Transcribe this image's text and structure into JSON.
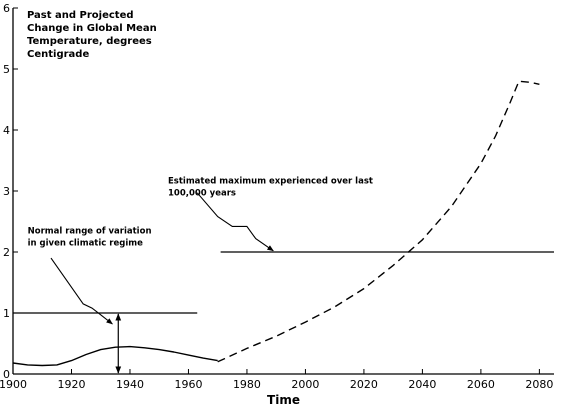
{
  "chart_data": {
    "type": "line",
    "title_lines": [
      "Past and Projected",
      "Change in Global Mean",
      "Temperature, degrees",
      "Centigrade"
    ],
    "xlabel": "Time",
    "ylabel": "",
    "xlim": [
      1900,
      2085
    ],
    "ylim": [
      0,
      6
    ],
    "x_ticks": [
      1900,
      1920,
      1940,
      1960,
      1980,
      2000,
      2020,
      2040,
      2060,
      2080
    ],
    "y_ticks": [
      0,
      1,
      2,
      3,
      4,
      5,
      6
    ],
    "grid": false,
    "series": [
      {
        "style": "solid",
        "x": [
          1900,
          1905,
          1910,
          1915,
          1920,
          1925,
          1930,
          1935,
          1940,
          1945,
          1950,
          1955,
          1960,
          1965,
          1970
        ],
        "y": [
          0.18,
          0.15,
          0.14,
          0.15,
          0.22,
          0.32,
          0.4,
          0.44,
          0.45,
          0.43,
          0.4,
          0.36,
          0.31,
          0.26,
          0.22
        ]
      },
      {
        "style": "dashed",
        "x": [
          1970,
          1980,
          1990,
          2000,
          2010,
          2020,
          2030,
          2040,
          2050,
          2060,
          2065,
          2070,
          2073,
          2077,
          2080
        ],
        "y": [
          0.2,
          0.42,
          0.62,
          0.85,
          1.1,
          1.4,
          1.78,
          2.2,
          2.75,
          3.45,
          3.9,
          4.45,
          4.8,
          4.78,
          4.75
        ]
      }
    ],
    "reference_lines": [
      {
        "y": 1.0,
        "x_start": 1900,
        "x_end": 1963
      },
      {
        "y": 2.0,
        "x_start": 1971,
        "x_end": 2085
      }
    ],
    "annotations": [
      {
        "lines": [
          "Normal range of variation",
          "in given climatic regime"
        ],
        "text_x": 1905,
        "text_y": 2.3,
        "leader": [
          [
            1913,
            1.9
          ],
          [
            1924,
            1.15
          ],
          [
            1927,
            1.08
          ],
          [
            1930,
            0.97
          ],
          [
            1934,
            0.82
          ]
        ]
      },
      {
        "lines": [
          "Estimated maximum experienced over last",
          "100,000 years"
        ],
        "text_x": 1953,
        "text_y": 3.12,
        "leader": [
          [
            1963,
            2.97
          ],
          [
            1970,
            2.58
          ],
          [
            1975,
            2.42
          ],
          [
            1980,
            2.42
          ],
          [
            1983,
            2.22
          ],
          [
            1989,
            2.02
          ]
        ]
      }
    ],
    "range_arrow": {
      "x": 1936,
      "y_low": 0.0,
      "y_high": 1.0
    }
  }
}
